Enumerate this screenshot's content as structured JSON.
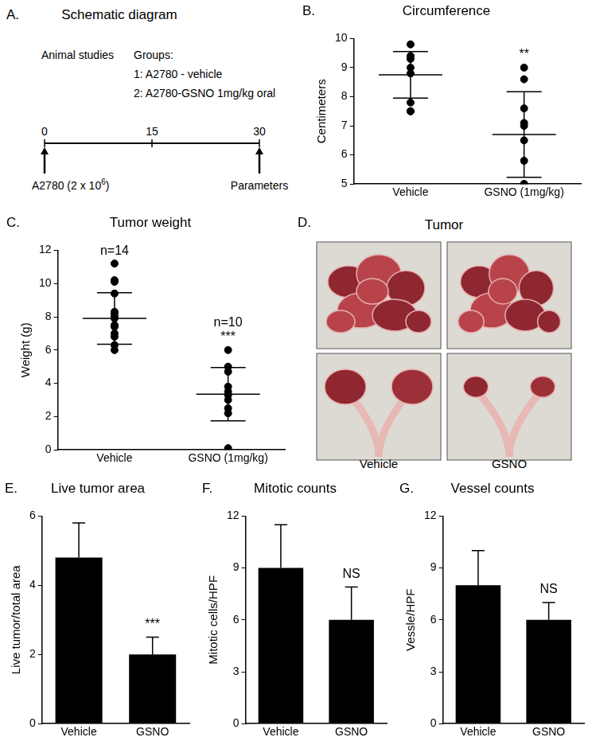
{
  "schematic": {
    "panel": "A.",
    "title": "Schematic diagram",
    "left_header": "Animal studies",
    "groups_header": "Groups:",
    "groups": [
      "1: A2780 - vehicle",
      "2: A2780-GSNO 1mg/kg oral"
    ],
    "timeline_ticks": [
      0,
      15,
      30
    ],
    "start_label": {
      "text": "A2780 (2 x 10",
      "sup": "6",
      "tail": ")"
    },
    "end_label": "Parameters"
  },
  "photo_panel": {
    "panel": "D.",
    "title": "Tumor",
    "labels": [
      "Vehicle",
      "GSNO"
    ]
  },
  "chart_data": [
    {
      "panel": "B.",
      "type": "scatter",
      "title": "Circumference",
      "y_label": "Centimeters",
      "categories": [
        "Vehicle",
        "GSNO (1mg/kg)"
      ],
      "values": [
        [
          9.8,
          9.4,
          9.3,
          9.0,
          8.8,
          7.8,
          7.5,
          7.5
        ],
        [
          9.0,
          8.6,
          7.6,
          7.1,
          7.0,
          6.5,
          5.8,
          5.0,
          5.0
        ]
      ],
      "means": [
        8.75,
        6.7
      ],
      "sd": [
        0.8,
        1.47
      ],
      "annotations": [
        {
          "category": "GSNO (1mg/kg)",
          "texts": [
            "**"
          ]
        }
      ],
      "color": "#000000",
      "ylim": [
        5,
        10
      ],
      "yticks": [
        5,
        6,
        7,
        8,
        9,
        10
      ],
      "grid": false
    },
    {
      "panel": "C.",
      "type": "scatter",
      "title": "Tumor weight",
      "y_label": "Weight (g)",
      "categories": [
        "Vehicle",
        "GSNO (1mg/kg)"
      ],
      "values": [
        [
          11.2,
          10.2,
          10.1,
          9.4,
          8.3,
          8.2,
          8.0,
          7.9,
          7.5,
          7.4,
          7.0,
          6.8,
          6.3,
          6.0
        ],
        [
          6.0,
          5.0,
          4.7,
          3.8,
          3.5,
          3.3,
          3.0,
          2.5,
          2.2,
          0.1
        ]
      ],
      "means": [
        7.9,
        3.35
      ],
      "sd": [
        1.55,
        1.6
      ],
      "annotations": [
        {
          "category": "Vehicle",
          "texts": [
            "n=14"
          ]
        },
        {
          "category": "GSNO (1mg/kg)",
          "texts": [
            "n=10",
            "***"
          ]
        }
      ],
      "color": "#000000",
      "ylim": [
        0,
        12
      ],
      "yticks": [
        0,
        2,
        4,
        6,
        8,
        10,
        12
      ],
      "grid": false
    },
    {
      "panel": "E.",
      "type": "bar",
      "title": "Live tumor area",
      "y_label": "Live tumor/total area",
      "categories": [
        "Vehicle",
        "GSNO"
      ],
      "values": [
        4.8,
        2.0
      ],
      "errors": [
        1.0,
        0.5
      ],
      "annotations": [
        {
          "category": "GSNO",
          "texts": [
            "***"
          ]
        }
      ],
      "color": "#000000",
      "ylim": [
        0,
        6
      ],
      "yticks": [
        0,
        2,
        4,
        6
      ],
      "grid": false
    },
    {
      "panel": "F.",
      "type": "bar",
      "title": "Mitotic counts",
      "y_label": "Mitotic cells/HPF",
      "categories": [
        "Vehicle",
        "GSNO"
      ],
      "values": [
        9.0,
        6.0
      ],
      "errors": [
        2.5,
        1.9
      ],
      "annotations": [
        {
          "category": "GSNO",
          "texts": [
            "NS"
          ]
        }
      ],
      "color": "#000000",
      "ylim": [
        0,
        12
      ],
      "yticks": [
        0,
        3,
        6,
        9,
        12
      ],
      "grid": false
    },
    {
      "panel": "G.",
      "type": "bar",
      "title": "Vessel counts",
      "y_label": "Vessle/HPF",
      "categories": [
        "Vehicle",
        "GSNO"
      ],
      "values": [
        8.0,
        6.0
      ],
      "errors": [
        2.0,
        1.0
      ],
      "annotations": [
        {
          "category": "GSNO",
          "texts": [
            "NS"
          ]
        }
      ],
      "color": "#000000",
      "ylim": [
        0,
        12
      ],
      "yticks": [
        0,
        3,
        6,
        9,
        12
      ],
      "grid": false
    }
  ]
}
